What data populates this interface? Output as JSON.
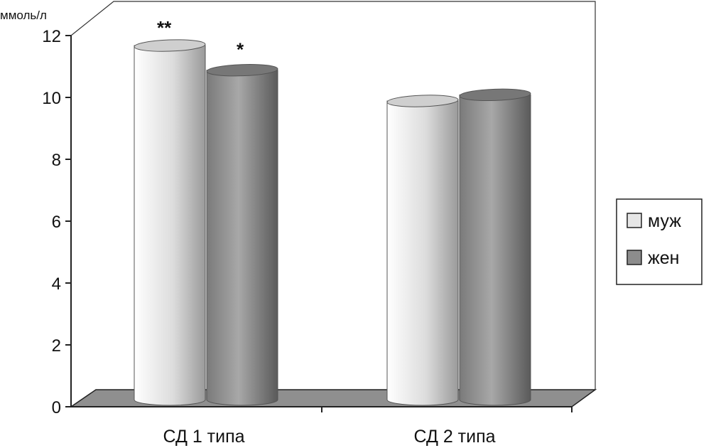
{
  "chart_data": {
    "type": "bar",
    "style": "3d-cylinder",
    "ylabel": "ммоль/л",
    "ylim": [
      0,
      12
    ],
    "yticks": [
      "0",
      "2",
      "4",
      "6",
      "8",
      "10",
      "12"
    ],
    "categories": [
      "СД 1 типа",
      "СД 2 типа"
    ],
    "series": [
      {
        "name": "муж",
        "values": [
          11.5,
          9.7
        ],
        "color": "#e6e6e6",
        "annotations": [
          "**",
          ""
        ]
      },
      {
        "name": "жен",
        "values": [
          10.7,
          9.9
        ],
        "color": "#8c8c8c",
        "annotations": [
          "*",
          ""
        ]
      }
    ],
    "legend_position": "right",
    "grid": false
  }
}
